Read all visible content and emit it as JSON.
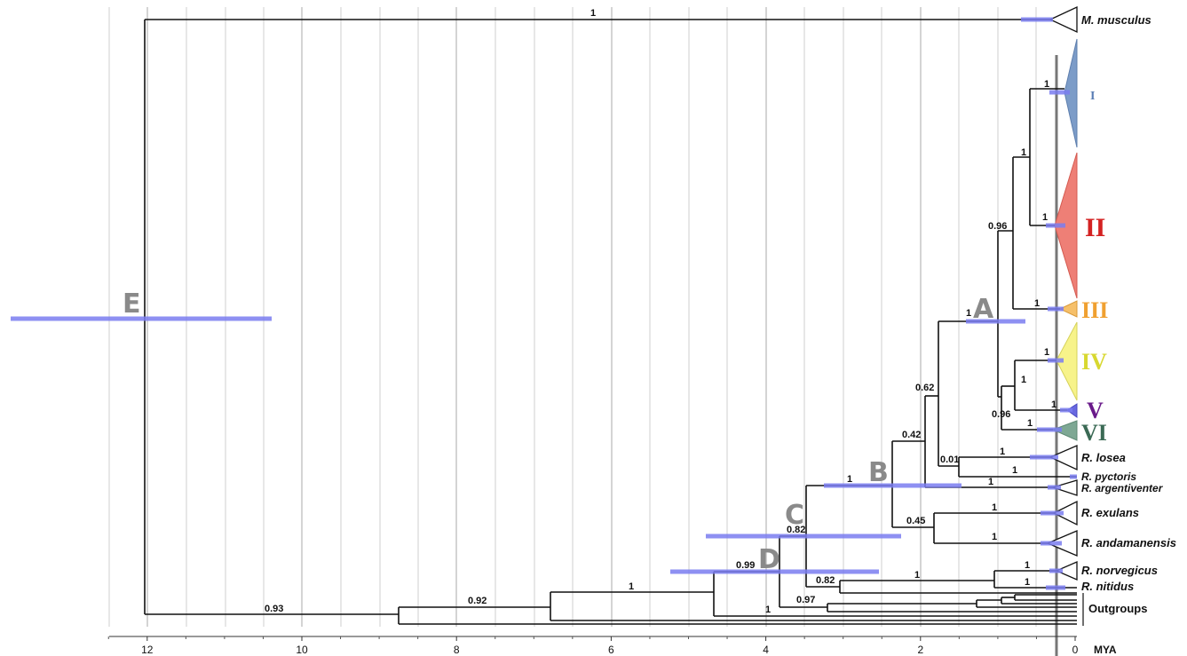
{
  "axis": {
    "unit": "MYA",
    "ticks": [
      {
        "value": 12,
        "label": "12"
      },
      {
        "value": 10,
        "label": "10"
      },
      {
        "value": 8,
        "label": "8"
      },
      {
        "value": 6,
        "label": "6"
      },
      {
        "value": 4,
        "label": "4"
      },
      {
        "value": 2,
        "label": "2"
      },
      {
        "value": 0,
        "label": "0"
      }
    ]
  },
  "taxa": {
    "musculus": "M. musculus",
    "losea": "R. losea",
    "pyctoris": "R. pyctoris",
    "argentiventer": "R. argentiventer",
    "exulans": "R. exulans",
    "andamanensis": "R. andamanensis",
    "norvegicus": "R. norvegicus",
    "nitidus": "R. nitidus",
    "outgroups": "Outgroups"
  },
  "clades": {
    "I": {
      "label": "I",
      "color": "#5a7db4"
    },
    "II": {
      "label": "II",
      "color": "#d42222"
    },
    "III": {
      "label": "III",
      "color": "#f0a030"
    },
    "IV": {
      "label": "IV",
      "color": "#d8d830"
    },
    "V": {
      "label": "V",
      "color": "#6a1a8a"
    },
    "VI": {
      "label": "VI",
      "color": "#3b6a55"
    }
  },
  "clade_fills": {
    "I": "#7c9cc8",
    "II": "#ee7f76",
    "III": "#f6c06a",
    "IV": "#f7f38a",
    "V": "#6868e0",
    "VI": "#7ea894"
  },
  "node_letters": {
    "A": "A",
    "B": "B",
    "C": "C",
    "D": "D",
    "E": "E"
  },
  "support": {
    "root_musculus": "1",
    "root_rattus": "0.93",
    "outgroup_node": "0.92",
    "outgroup_node2": "1",
    "node_D": "0.99",
    "node_C": "0.82",
    "node_B": "1",
    "node_042": "0.42",
    "node_062": "0.62",
    "node_A": "1",
    "node_096_top": "0.96",
    "node_096_bottom": "0.96",
    "clade_I": "1",
    "clade_II": "1",
    "clade_I_II": "1",
    "clade_III": "1",
    "clade_IV": "1",
    "clade_IV_V": "1",
    "clade_V": "1",
    "clade_VI": "1",
    "losea_pyctoris": "0.01",
    "losea": "1",
    "pyctoris": "1",
    "argentiventer": "1",
    "exulans_andamanensis": "0.45",
    "exulans": "1",
    "andamanensis": "1",
    "norvegicus_nitidus": "1",
    "norvegicus": "1",
    "nitidus": "1",
    "node_082_bottom": "0.82",
    "node_097": "0.97",
    "node_1_bottom": "1"
  }
}
